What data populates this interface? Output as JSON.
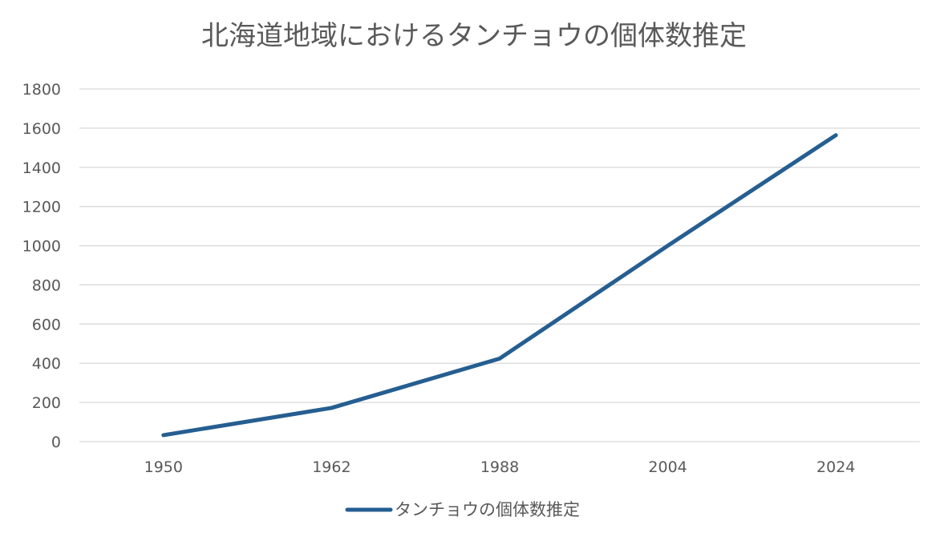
{
  "chart_data": {
    "type": "line",
    "title": "北海道地域におけるタンチョウの個体数推定",
    "categories": [
      "1950",
      "1962",
      "1988",
      "2004",
      "2024"
    ],
    "series": [
      {
        "name": "タンチョウの個体数推定",
        "color": "#255e91",
        "values": [
          33,
          172,
          424,
          1000,
          1564
        ]
      }
    ],
    "y_ticks": [
      "0",
      "200",
      "400",
      "600",
      "800",
      "1000",
      "1200",
      "1400",
      "1600",
      "1800"
    ],
    "ylim": [
      0,
      1800
    ],
    "grid": true,
    "legend_position": "bottom"
  }
}
